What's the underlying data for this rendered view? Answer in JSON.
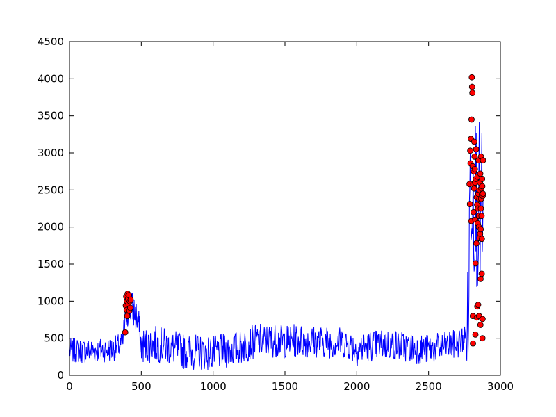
{
  "chart_data": {
    "type": "line",
    "title": "",
    "xlabel": "",
    "ylabel": "",
    "xlim": [
      0,
      3000
    ],
    "ylim": [
      0,
      4500
    ],
    "xticks": [
      0,
      500,
      1000,
      1500,
      2000,
      2500,
      3000
    ],
    "yticks": [
      0,
      500,
      1000,
      1500,
      2000,
      2500,
      3000,
      3500,
      4000,
      4500
    ],
    "grid": false,
    "legend": "none",
    "series": [
      {
        "type": "line",
        "color": "#0000ff",
        "noise_seed": 7,
        "x_range": [
          0,
          2880
        ],
        "sample_step": 3,
        "base_profile": [
          [
            0,
            330
          ],
          [
            100,
            330
          ],
          [
            200,
            340
          ],
          [
            300,
            350
          ],
          [
            370,
            420
          ],
          [
            385,
            720
          ],
          [
            400,
            880
          ],
          [
            430,
            920
          ],
          [
            460,
            820
          ],
          [
            480,
            700
          ],
          [
            500,
            400
          ],
          [
            600,
            420
          ],
          [
            700,
            380
          ],
          [
            800,
            320
          ],
          [
            900,
            310
          ],
          [
            1000,
            300
          ],
          [
            1100,
            330
          ],
          [
            1200,
            380
          ],
          [
            1300,
            470
          ],
          [
            1400,
            470
          ],
          [
            1500,
            460
          ],
          [
            1600,
            470
          ],
          [
            1700,
            460
          ],
          [
            1800,
            450
          ],
          [
            1900,
            440
          ],
          [
            1950,
            420
          ],
          [
            2000,
            340
          ],
          [
            2100,
            400
          ],
          [
            2200,
            420
          ],
          [
            2300,
            400
          ],
          [
            2400,
            360
          ],
          [
            2500,
            350
          ],
          [
            2600,
            380
          ],
          [
            2700,
            420
          ],
          [
            2760,
            520
          ],
          [
            2775,
            700
          ],
          [
            2790,
            2600
          ],
          [
            2800,
            2800
          ],
          [
            2830,
            2400
          ],
          [
            2860,
            2200
          ],
          [
            2880,
            2000
          ]
        ],
        "noise_amplitude": [
          [
            0,
            170
          ],
          [
            370,
            170
          ],
          [
            385,
            250
          ],
          [
            500,
            250
          ],
          [
            2760,
            200
          ],
          [
            2780,
            1200
          ],
          [
            2880,
            1200
          ]
        ]
      },
      {
        "type": "scatter",
        "color": "#ff0000",
        "edgecolor": "#000000",
        "points": [
          [
            388,
            580
          ],
          [
            392,
            940
          ],
          [
            395,
            1060
          ],
          [
            398,
            880
          ],
          [
            400,
            1000
          ],
          [
            402,
            800
          ],
          [
            405,
            1100
          ],
          [
            408,
            1030
          ],
          [
            411,
            960
          ],
          [
            414,
            1080
          ],
          [
            417,
            870
          ],
          [
            420,
            1000
          ],
          [
            423,
            910
          ],
          [
            426,
            1020
          ],
          [
            2785,
            2580
          ],
          [
            2788,
            2310
          ],
          [
            2790,
            3030
          ],
          [
            2792,
            2860
          ],
          [
            2795,
            3190
          ],
          [
            2797,
            2080
          ],
          [
            2799,
            3450
          ],
          [
            2801,
            4020
          ],
          [
            2803,
            3890
          ],
          [
            2805,
            3810
          ],
          [
            2807,
            2820
          ],
          [
            2808,
            800
          ],
          [
            2809,
            430
          ],
          [
            2811,
            2580
          ],
          [
            2813,
            2200
          ],
          [
            2815,
            2750
          ],
          [
            2817,
            2520
          ],
          [
            2818,
            3150
          ],
          [
            2820,
            2950
          ],
          [
            2822,
            2780
          ],
          [
            2824,
            2600
          ],
          [
            2825,
            2100
          ],
          [
            2826,
            550
          ],
          [
            2827,
            1510
          ],
          [
            2829,
            2650
          ],
          [
            2831,
            3050
          ],
          [
            2833,
            1780
          ],
          [
            2835,
            2400
          ],
          [
            2836,
            780
          ],
          [
            2838,
            2300
          ],
          [
            2839,
            930
          ],
          [
            2841,
            2680
          ],
          [
            2842,
            2050
          ],
          [
            2844,
            2250
          ],
          [
            2845,
            950
          ],
          [
            2847,
            2450
          ],
          [
            2848,
            2900
          ],
          [
            2850,
            2000
          ],
          [
            2851,
            2150
          ],
          [
            2852,
            800
          ],
          [
            2854,
            2380
          ],
          [
            2855,
            1850
          ],
          [
            2856,
            2500
          ],
          [
            2858,
            2600
          ],
          [
            2859,
            1910
          ],
          [
            2860,
            2720
          ],
          [
            2861,
            680
          ],
          [
            2862,
            1300
          ],
          [
            2863,
            1970
          ],
          [
            2864,
            2250
          ],
          [
            2865,
            2950
          ],
          [
            2866,
            2380
          ],
          [
            2868,
            2520
          ],
          [
            2869,
            2150
          ],
          [
            2870,
            1370
          ],
          [
            2871,
            1840
          ],
          [
            2872,
            2440
          ],
          [
            2873,
            2650
          ],
          [
            2874,
            2550
          ],
          [
            2875,
            500
          ],
          [
            2876,
            760
          ],
          [
            2877,
            2420
          ],
          [
            2878,
            2450
          ],
          [
            2879,
            2900
          ]
        ]
      }
    ]
  }
}
